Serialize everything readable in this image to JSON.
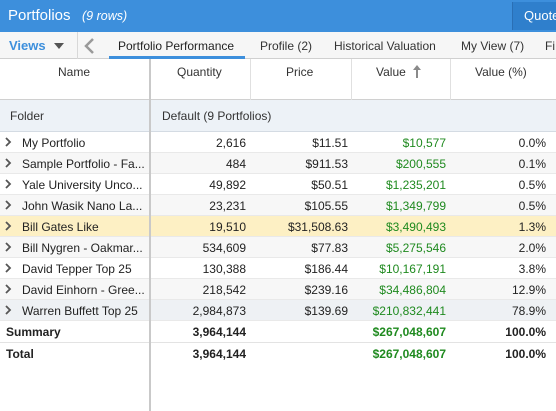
{
  "titlebar": {
    "title": "Portfolios",
    "row_count": "(9 rows)",
    "quote_button": "Quote"
  },
  "tabbar": {
    "views_label": "Views",
    "tabs": [
      {
        "label": "Portfolio Performance",
        "active": true
      },
      {
        "label": "Profile (2)"
      },
      {
        "label": "Historical Valuation"
      },
      {
        "label": "My View (7)"
      },
      {
        "label": "Fi"
      }
    ]
  },
  "columns": {
    "name": "Name",
    "quantity": "Quantity",
    "price": "Price",
    "value": "Value",
    "value_pct": "Value (%)"
  },
  "folder": {
    "label": "Folder",
    "group": "Default (9 Portfolios)"
  },
  "rows": [
    {
      "name": "My Portfolio",
      "quantity": "2,616",
      "price": "$11.51",
      "value": "$10,577",
      "pct": "0.0%"
    },
    {
      "name": "Sample Portfolio - Fa...",
      "quantity": "484",
      "price": "$911.53",
      "value": "$200,555",
      "pct": "0.1%"
    },
    {
      "name": "Yale University Unco...",
      "quantity": "49,892",
      "price": "$50.51",
      "value": "$1,235,201",
      "pct": "0.5%"
    },
    {
      "name": "John Wasik Nano La...",
      "quantity": "23,231",
      "price": "$105.55",
      "value": "$1,349,799",
      "pct": "0.5%"
    },
    {
      "name": "Bill Gates Like",
      "quantity": "19,510",
      "price": "$31,508.63",
      "value": "$3,490,493",
      "pct": "1.3%"
    },
    {
      "name": "Bill Nygren - Oakmar...",
      "quantity": "534,609",
      "price": "$77.83",
      "value": "$5,275,546",
      "pct": "2.0%"
    },
    {
      "name": "David Tepper Top 25",
      "quantity": "130,388",
      "price": "$186.44",
      "value": "$10,167,191",
      "pct": "3.8%"
    },
    {
      "name": "David Einhorn - Gree...",
      "quantity": "218,542",
      "price": "$239.16",
      "value": "$34,486,804",
      "pct": "12.9%"
    },
    {
      "name": "Warren Buffett Top 25",
      "quantity": "2,984,873",
      "price": "$139.69",
      "value": "$210,832,441",
      "pct": "78.9%"
    }
  ],
  "summary": {
    "label": "Summary",
    "quantity": "3,964,144",
    "value": "$267,048,607",
    "pct": "100.0%"
  },
  "total": {
    "label": "Total",
    "quantity": "3,964,144",
    "value": "$267,048,607",
    "pct": "100.0%"
  },
  "colors": {
    "accent": "#3d8fdc",
    "positive": "#1f8a1f",
    "highlight": "#fdf0c4"
  }
}
